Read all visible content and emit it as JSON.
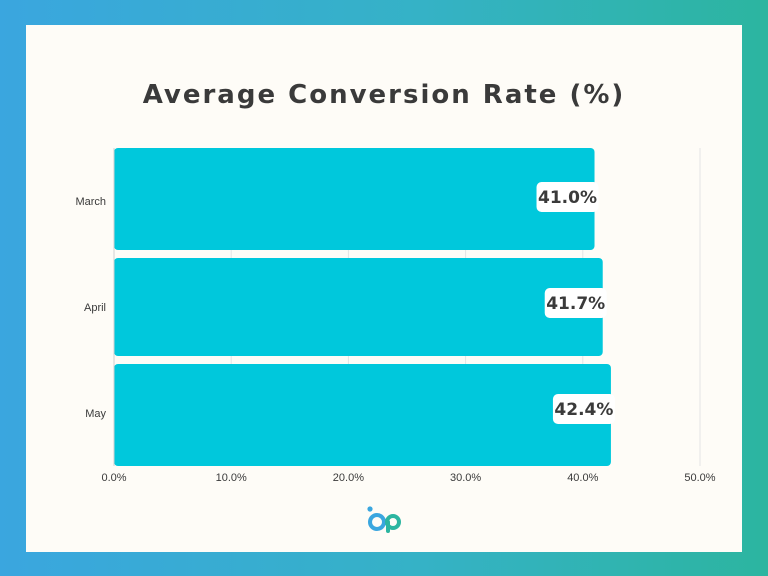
{
  "chart_data": {
    "type": "bar",
    "orientation": "horizontal",
    "title": "Average Conversion Rate (%)",
    "categories": [
      "March",
      "April",
      "May"
    ],
    "values": [
      41.0,
      41.7,
      42.4
    ],
    "value_labels": [
      "41.0%",
      "41.7%",
      "42.4%"
    ],
    "xlim": [
      0,
      50
    ],
    "x_ticks": [
      "0.0%",
      "10.0%",
      "20.0%",
      "30.0%",
      "40.0%",
      "50.0%"
    ],
    "grid": true,
    "bar_color": "#00c8dc"
  },
  "colors": {
    "text": "#3a3a3a",
    "grid": "#e4e4e4",
    "logo_blue": "#3aa6df",
    "logo_teal": "#2cb5a0"
  },
  "logo": {
    "icon": "brand-logo-icon"
  }
}
